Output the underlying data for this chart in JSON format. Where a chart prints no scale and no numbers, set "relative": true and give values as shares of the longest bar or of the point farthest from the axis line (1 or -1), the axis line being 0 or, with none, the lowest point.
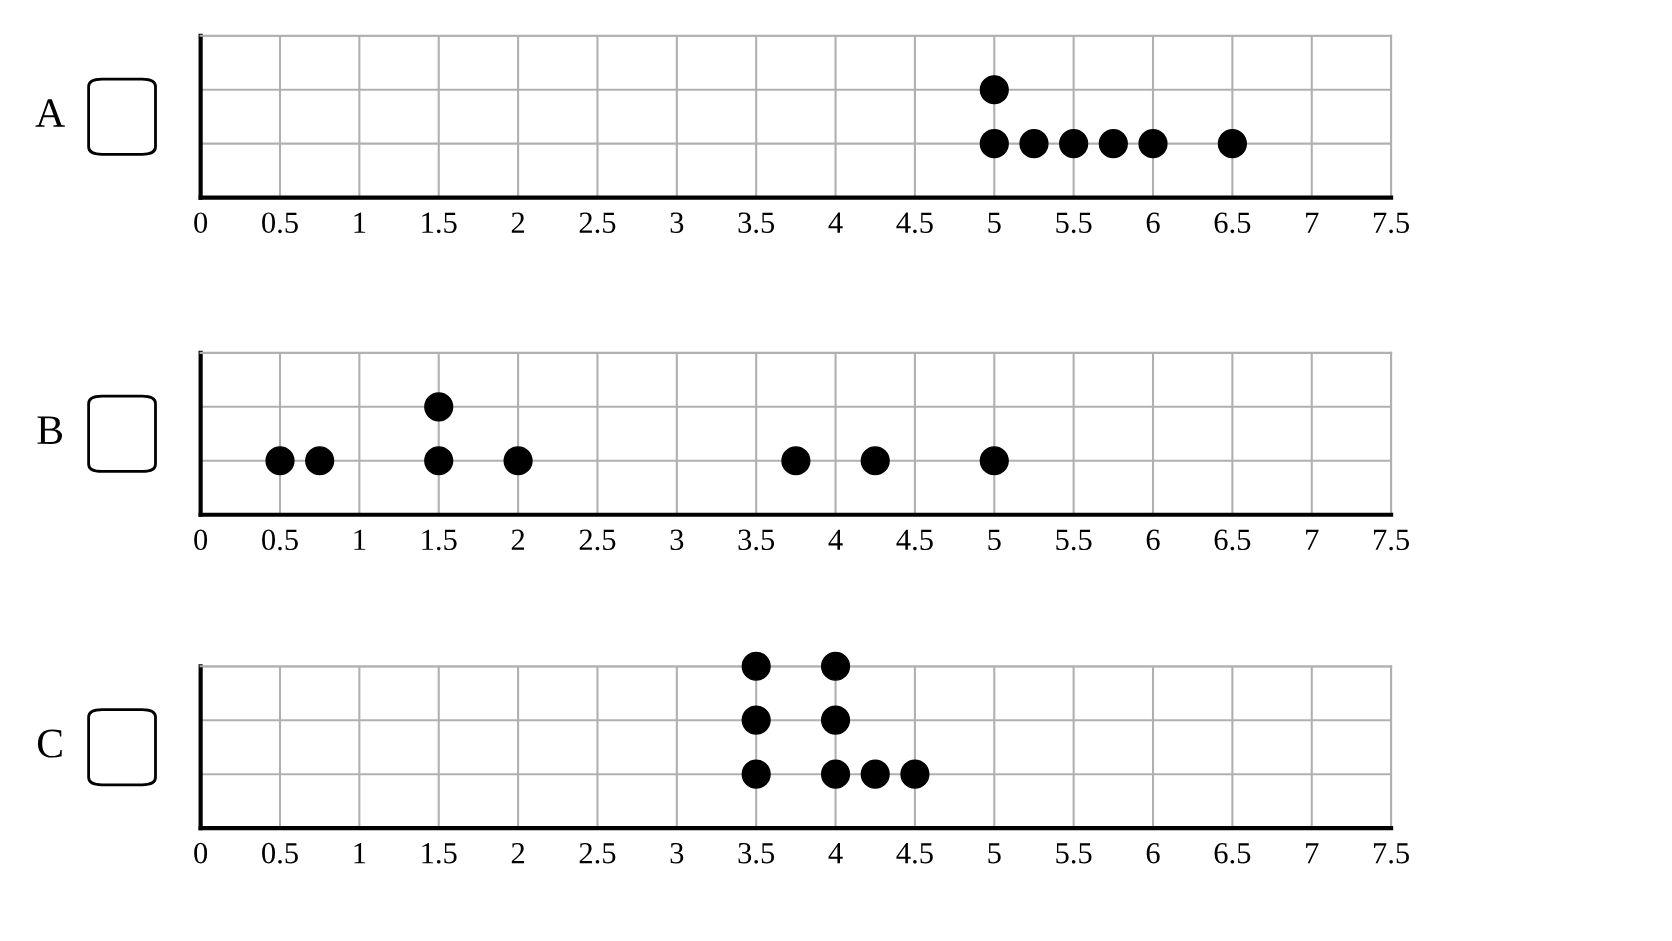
{
  "chart_data": [
    {
      "type": "scatter",
      "ylabel": "A",
      "x": [
        5,
        5,
        5.25,
        5.5,
        5.75,
        6,
        6.5
      ],
      "values": [
        0.5,
        1,
        0.5,
        0.5,
        0.5,
        0.5,
        0.5
      ],
      "relative": true,
      "color": "#000000",
      "xlim": [
        0,
        7.5
      ],
      "xticks": [
        0,
        0.5,
        1,
        1.5,
        2,
        2.5,
        3,
        3.5,
        4,
        4.5,
        5,
        5.5,
        6,
        6.5,
        7,
        7.5
      ],
      "tick_labels": "x",
      "grid": true,
      "marker": "circle"
    },
    {
      "type": "scatter",
      "ylabel": "B",
      "x": [
        0.5,
        0.75,
        1.5,
        1.5,
        2,
        3.75,
        4.25,
        5
      ],
      "values": [
        0.5,
        0.5,
        0.5,
        1,
        0.5,
        0.5,
        0.5,
        0.5
      ],
      "relative": true,
      "color": "#000000",
      "xlim": [
        0,
        7.5
      ],
      "xticks": [
        0,
        0.5,
        1,
        1.5,
        2,
        2.5,
        3,
        3.5,
        4,
        4.5,
        5,
        5.5,
        6,
        6.5,
        7,
        7.5
      ],
      "tick_labels": "x",
      "grid": true,
      "marker": "circle"
    },
    {
      "type": "scatter",
      "ylabel": "C",
      "x": [
        3.5,
        3.5,
        3.5,
        4,
        4,
        4,
        4.25,
        4.5
      ],
      "values": [
        0.333,
        0.667,
        1,
        0.333,
        0.667,
        1,
        0.333,
        0.333
      ],
      "relative": true,
      "color": "#000000",
      "xlim": [
        0,
        7.5
      ],
      "xticks": [
        0,
        0.5,
        1,
        1.5,
        2,
        2.5,
        3,
        3.5,
        4,
        4.5,
        5,
        5.5,
        6,
        6.5,
        7,
        7.5
      ],
      "tick_labels": "x",
      "grid": true,
      "marker": "circle"
    }
  ]
}
